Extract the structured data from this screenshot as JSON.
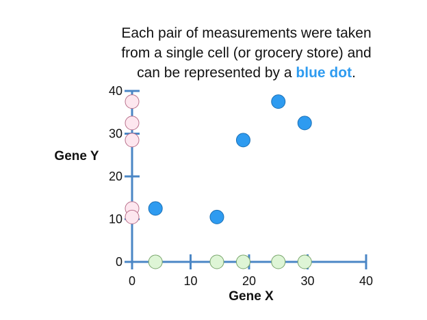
{
  "caption": {
    "line1": "Each pair of measurements were taken",
    "line2": "from a single cell (or grocery store) and",
    "line3_prefix": "can be represented by a ",
    "highlight": "blue dot",
    "line3_suffix": "."
  },
  "colors": {
    "axis": "#4a86c5",
    "blue_dot": "#2e9bf0",
    "blue_dot_stroke": "#1a6fb5",
    "pink_dot": "#fde7ef",
    "pink_dot_stroke": "#b9708b",
    "green_dot": "#def5d6",
    "green_dot_stroke": "#77a46a",
    "highlight_text": "#2e9bf0"
  },
  "chart_data": {
    "type": "scatter",
    "xlabel": "Gene X",
    "ylabel": "Gene Y",
    "xlim": [
      0,
      40
    ],
    "ylim": [
      0,
      40
    ],
    "x_ticks": [
      0,
      10,
      20,
      30,
      40
    ],
    "y_ticks": [
      0,
      10,
      20,
      30,
      40
    ],
    "x_tick_labels": [
      "0",
      "10",
      "20",
      "30",
      "40"
    ],
    "y_tick_labels": [
      "0",
      "10",
      "20",
      "30",
      "40"
    ],
    "grid": false,
    "points": [
      {
        "x": 4,
        "y": 12.5
      },
      {
        "x": 14.5,
        "y": 10.5
      },
      {
        "x": 19,
        "y": 28.5
      },
      {
        "x": 25,
        "y": 37.5
      },
      {
        "x": 29.5,
        "y": 32.5
      }
    ],
    "y_projections": [
      37.5,
      32.5,
      28.5,
      12.5,
      10.5
    ],
    "x_projections": [
      4,
      14.5,
      19,
      25,
      29.5
    ]
  }
}
